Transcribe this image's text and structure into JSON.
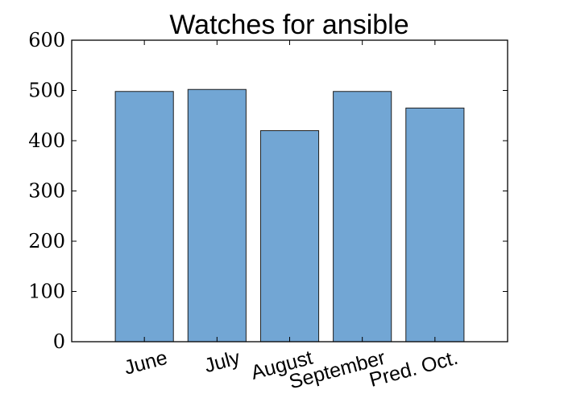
{
  "chart_data": {
    "type": "bar",
    "title": "Watches for ansible",
    "categories": [
      "June",
      "July",
      "August",
      "September",
      "Pred. Oct."
    ],
    "values": [
      498,
      502,
      420,
      498,
      465
    ],
    "ylim": [
      0,
      600
    ],
    "yticks": [
      "0",
      "100",
      "200",
      "300",
      "400",
      "500",
      "600"
    ],
    "xlabel": "",
    "ylabel": "",
    "grid": false,
    "legend": "none",
    "bar_color": "#72a6d4",
    "bar_edge_color": "#1f1f1f"
  }
}
